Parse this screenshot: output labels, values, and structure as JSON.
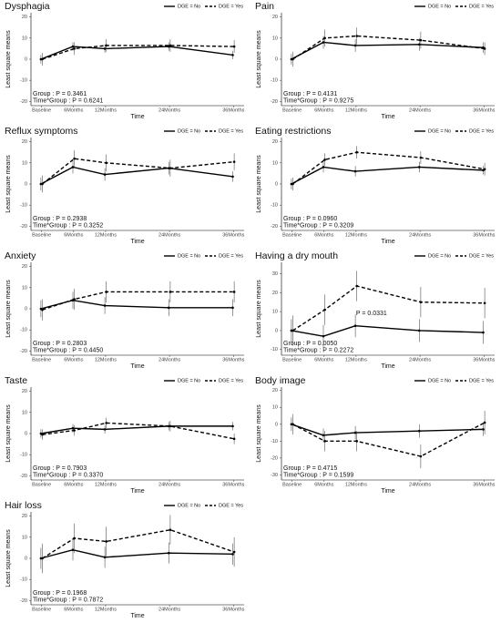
{
  "chart_data": [
    {
      "type": "line",
      "title": "Dysphagia",
      "xlabel": "Time",
      "ylabel": "Least square means",
      "x": [
        0,
        6,
        12,
        24,
        36
      ],
      "xlim": [
        -2,
        38
      ],
      "xticks": [
        {
          "value": 0,
          "label": "Baseline"
        },
        {
          "value": 6,
          "label": "6Months"
        },
        {
          "value": 12,
          "label": "12Months"
        },
        {
          "value": 24,
          "label": "24Months"
        },
        {
          "value": 36,
          "label": "36Months"
        }
      ],
      "ylim": [
        -22,
        22
      ],
      "yticks": [
        -20,
        -10,
        0,
        10,
        20
      ],
      "series": [
        {
          "name": "DGE = No",
          "color": "#000000",
          "dash": false,
          "values": [
            0,
            6,
            5,
            6,
            2
          ],
          "errors": [
            2,
            2,
            2,
            2,
            2
          ]
        },
        {
          "name": "DGE = Yes",
          "color": "#000000",
          "dash": true,
          "values": [
            0,
            5,
            6.5,
            6.5,
            6
          ],
          "errors": [
            3,
            3,
            3,
            3,
            3
          ]
        }
      ],
      "annotations": [
        "Group : P = 0.3461",
        "Time*Group : P = 0.6241"
      ]
    },
    {
      "type": "line",
      "title": "Pain",
      "xlabel": "Time",
      "ylabel": "Least square means",
      "x": [
        0,
        6,
        12,
        24,
        36
      ],
      "xlim": [
        -2,
        38
      ],
      "xticks": [
        {
          "value": 0,
          "label": "Baseline"
        },
        {
          "value": 6,
          "label": "6Months"
        },
        {
          "value": 12,
          "label": "12Months"
        },
        {
          "value": 24,
          "label": "24Months"
        },
        {
          "value": 36,
          "label": "36Months"
        }
      ],
      "ylim": [
        -22,
        22
      ],
      "yticks": [
        -20,
        -10,
        0,
        10,
        20
      ],
      "series": [
        {
          "name": "DGE = No",
          "color": "#000000",
          "dash": false,
          "values": [
            0,
            8,
            6.5,
            7,
            5.5
          ],
          "errors": [
            2.5,
            3,
            3,
            3,
            2.5
          ]
        },
        {
          "name": "DGE = Yes",
          "color": "#000000",
          "dash": true,
          "values": [
            0,
            10,
            11,
            9,
            5
          ],
          "errors": [
            3.5,
            4,
            4,
            4,
            3
          ]
        }
      ],
      "annotations": [
        "Group : P = 0.4131",
        "Time*Group : P = 0.9275"
      ]
    },
    {
      "type": "line",
      "title": "Reflux symptoms",
      "xlabel": "Time",
      "ylabel": "Least square means",
      "x": [
        0,
        6,
        12,
        24,
        36
      ],
      "xlim": [
        -2,
        38
      ],
      "xticks": [
        {
          "value": 0,
          "label": "Baseline"
        },
        {
          "value": 6,
          "label": "6Months"
        },
        {
          "value": 12,
          "label": "12Months"
        },
        {
          "value": 24,
          "label": "24Months"
        },
        {
          "value": 36,
          "label": "36Months"
        }
      ],
      "ylim": [
        -22,
        22
      ],
      "yticks": [
        -20,
        -10,
        0,
        10,
        20
      ],
      "series": [
        {
          "name": "DGE = No",
          "color": "#000000",
          "dash": false,
          "values": [
            0,
            8,
            4.5,
            7.5,
            3.5
          ],
          "errors": [
            3,
            3,
            3,
            3,
            2.5
          ]
        },
        {
          "name": "DGE = Yes",
          "color": "#000000",
          "dash": true,
          "values": [
            0,
            12,
            10,
            7.5,
            10.5
          ],
          "errors": [
            4,
            4,
            4,
            4,
            4
          ]
        }
      ],
      "annotations": [
        "Group : P = 0.2938",
        "Time*Group : P = 0.3252"
      ]
    },
    {
      "type": "line",
      "title": "Eating restrictions",
      "xlabel": "Time",
      "ylabel": "Least square means",
      "x": [
        0,
        6,
        12,
        24,
        36
      ],
      "xlim": [
        -2,
        38
      ],
      "xticks": [
        {
          "value": 0,
          "label": "Baseline"
        },
        {
          "value": 6,
          "label": "6Months"
        },
        {
          "value": 12,
          "label": "12Months"
        },
        {
          "value": 24,
          "label": "24Months"
        },
        {
          "value": 36,
          "label": "36Months"
        }
      ],
      "ylim": [
        -22,
        22
      ],
      "yticks": [
        -20,
        -10,
        0,
        10,
        20
      ],
      "series": [
        {
          "name": "DGE = No",
          "color": "#000000",
          "dash": false,
          "values": [
            0,
            8,
            6,
            8,
            6.5
          ],
          "errors": [
            2.5,
            2.5,
            2.5,
            2.5,
            2
          ]
        },
        {
          "name": "DGE = Yes",
          "color": "#000000",
          "dash": true,
          "values": [
            0,
            11.5,
            15,
            12.5,
            7
          ],
          "errors": [
            3,
            3,
            3,
            3,
            3
          ]
        }
      ],
      "annotations": [
        "Group : P = 0.0960",
        "Time*Group : P = 0.3209"
      ]
    },
    {
      "type": "line",
      "title": "Anxiety",
      "xlabel": "Time",
      "ylabel": "Least square means",
      "x": [
        0,
        6,
        12,
        24,
        36
      ],
      "xlim": [
        -2,
        38
      ],
      "xticks": [
        {
          "value": 0,
          "label": "Baseline"
        },
        {
          "value": 6,
          "label": "6Months"
        },
        {
          "value": 12,
          "label": "12Months"
        },
        {
          "value": 24,
          "label": "24Months"
        },
        {
          "value": 36,
          "label": "36Months"
        }
      ],
      "ylim": [
        -22,
        22
      ],
      "yticks": [
        -20,
        -10,
        0,
        10,
        20
      ],
      "series": [
        {
          "name": "DGE = No",
          "color": "#000000",
          "dash": false,
          "values": [
            0,
            4,
            1.5,
            0.5,
            0.5
          ],
          "errors": [
            4,
            4,
            4,
            4,
            4
          ]
        },
        {
          "name": "DGE = Yes",
          "color": "#000000",
          "dash": true,
          "values": [
            -0.5,
            4.5,
            8,
            8,
            8
          ],
          "errors": [
            5,
            5,
            5,
            5,
            5
          ]
        }
      ],
      "annotations": [
        "Group : P = 0.2803",
        "Time*Group : P = 0.4450"
      ]
    },
    {
      "type": "line",
      "title": "Having a dry mouth",
      "xlabel": "Time",
      "ylabel": "Least square means",
      "x": [
        0,
        6,
        12,
        24,
        36
      ],
      "xlim": [
        -2,
        38
      ],
      "xticks": [
        {
          "value": 0,
          "label": "Baseline"
        },
        {
          "value": 6,
          "label": "6Months"
        },
        {
          "value": 12,
          "label": "12Months"
        },
        {
          "value": 24,
          "label": "24Months"
        },
        {
          "value": 36,
          "label": "36Months"
        }
      ],
      "ylim": [
        -13,
        36
      ],
      "yticks": [
        -10,
        0,
        10,
        20,
        30
      ],
      "series": [
        {
          "name": "DGE = No",
          "color": "#000000",
          "dash": false,
          "values": [
            0,
            -3,
            2.5,
            0,
            -1
          ],
          "errors": [
            6,
            6,
            6,
            6,
            6
          ]
        },
        {
          "name": "DGE = Yes",
          "color": "#000000",
          "dash": true,
          "values": [
            0,
            11,
            23.5,
            15,
            14.5
          ],
          "errors": [
            8,
            8,
            8,
            8,
            8
          ]
        }
      ],
      "annotations": [
        "Group : P = 0.0050",
        "Time*Group : P = 0.2272"
      ],
      "note": {
        "x": 12,
        "y": 9,
        "text": "P = 0.0331"
      }
    },
    {
      "type": "line",
      "title": "Taste",
      "xlabel": "Time",
      "ylabel": "Least square means",
      "x": [
        0,
        6,
        12,
        24,
        36
      ],
      "xlim": [
        -2,
        38
      ],
      "xticks": [
        {
          "value": 0,
          "label": "Baseline"
        },
        {
          "value": 6,
          "label": "6Months"
        },
        {
          "value": 12,
          "label": "12Months"
        },
        {
          "value": 24,
          "label": "24Months"
        },
        {
          "value": 36,
          "label": "36Months"
        }
      ],
      "ylim": [
        -22,
        22
      ],
      "yticks": [
        -20,
        -10,
        0,
        10,
        20
      ],
      "series": [
        {
          "name": "DGE = No",
          "color": "#000000",
          "dash": false,
          "values": [
            0,
            2.5,
            2,
            3.5,
            3.5
          ],
          "errors": [
            2,
            2,
            2,
            2,
            2
          ]
        },
        {
          "name": "DGE = Yes",
          "color": "#000000",
          "dash": true,
          "values": [
            -0.5,
            1.5,
            5,
            3.5,
            -2.5
          ],
          "errors": [
            2.5,
            2.5,
            2.5,
            2.5,
            2.5
          ]
        }
      ],
      "annotations": [
        "Group : P = 0.7903",
        "Time*Group : P = 0.3370"
      ]
    },
    {
      "type": "line",
      "title": "Body image",
      "xlabel": "Time",
      "ylabel": "Least square means",
      "x": [
        0,
        6,
        12,
        24,
        36
      ],
      "xlim": [
        -2,
        38
      ],
      "xticks": [
        {
          "value": 0,
          "label": "Baseline"
        },
        {
          "value": 6,
          "label": "6Months"
        },
        {
          "value": 12,
          "label": "12Months"
        },
        {
          "value": 24,
          "label": "24Months"
        },
        {
          "value": 36,
          "label": "36Months"
        }
      ],
      "ylim": [
        -33,
        22
      ],
      "yticks": [
        -30,
        -20,
        -10,
        0,
        10,
        20
      ],
      "series": [
        {
          "name": "DGE = No",
          "color": "#000000",
          "dash": false,
          "values": [
            0,
            -6.5,
            -5,
            -4,
            -3
          ],
          "errors": [
            4,
            4,
            4,
            4,
            4
          ]
        },
        {
          "name": "DGE = Yes",
          "color": "#000000",
          "dash": true,
          "values": [
            0,
            -10,
            -10,
            -19,
            1
          ],
          "errors": [
            6,
            6,
            6,
            7,
            7
          ]
        }
      ],
      "annotations": [
        "Group : P = 0.4715",
        "Time*Group : P = 0.1599"
      ]
    },
    {
      "type": "line",
      "title": "Hair loss",
      "xlabel": "Time",
      "ylabel": "Least square means",
      "x": [
        0,
        6,
        12,
        24,
        36
      ],
      "xlim": [
        -2,
        38
      ],
      "xticks": [
        {
          "value": 0,
          "label": "Baseline"
        },
        {
          "value": 6,
          "label": "6Months"
        },
        {
          "value": 12,
          "label": "12Months"
        },
        {
          "value": 24,
          "label": "24Months"
        },
        {
          "value": 36,
          "label": "36Months"
        }
      ],
      "ylim": [
        -22,
        22
      ],
      "yticks": [
        -20,
        -10,
        0,
        10,
        20
      ],
      "series": [
        {
          "name": "DGE = No",
          "color": "#000000",
          "dash": false,
          "values": [
            0,
            4,
            0.5,
            2.5,
            2
          ],
          "errors": [
            5,
            5,
            5,
            5,
            5
          ]
        },
        {
          "name": "DGE = Yes",
          "color": "#000000",
          "dash": true,
          "values": [
            0,
            9.5,
            8,
            13.5,
            3
          ],
          "errors": [
            7,
            7,
            7,
            7,
            7
          ]
        }
      ],
      "annotations": [
        "Group : P = 0.1968",
        "Time*Group : P = 0.7872"
      ]
    }
  ]
}
